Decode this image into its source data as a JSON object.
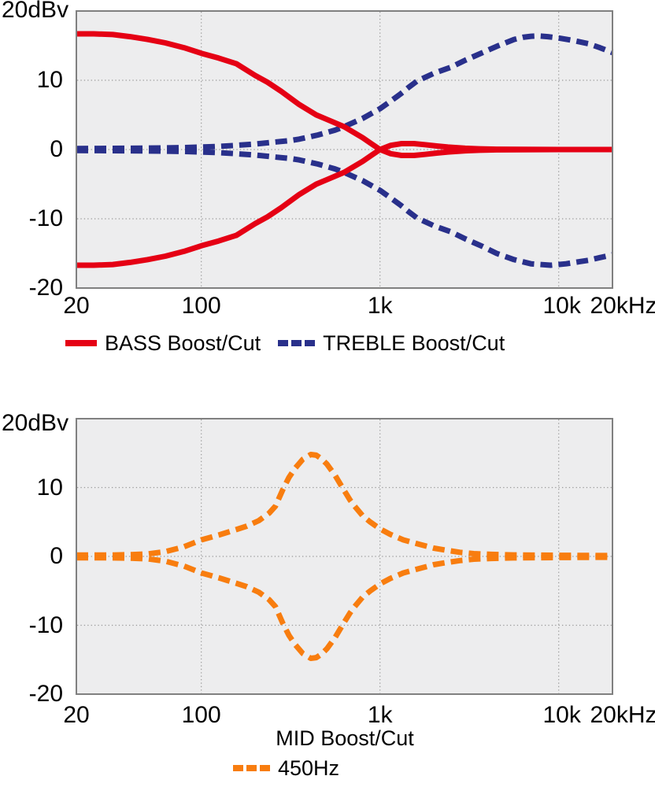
{
  "figure": {
    "background": "#ffffff",
    "text_color": "#000000"
  },
  "chart_data": [
    {
      "type": "line",
      "x_scale": "log",
      "x_range_hz": [
        20,
        20000
      ],
      "ylim": [
        -20,
        20
      ],
      "y_unit_label": "20dBv",
      "grid": "dotted",
      "plot_bg": "#ededee",
      "border_color": "#808080",
      "grid_color": "#999999",
      "y_ticks": [
        {
          "value": 10,
          "label": "10"
        },
        {
          "value": 0,
          "label": "0"
        },
        {
          "value": -10,
          "label": "-10"
        },
        {
          "value": -20,
          "label": "-20"
        }
      ],
      "x_ticks": [
        {
          "hz": 20,
          "label": "20"
        },
        {
          "hz": 100,
          "label": "100"
        },
        {
          "hz": 1000,
          "label": "1k"
        },
        {
          "hz": 10000,
          "label": "10k"
        },
        {
          "hz": 20000,
          "label": "20kHz"
        }
      ],
      "y_gridlines": [
        10,
        0,
        -10
      ],
      "x_gridlines_hz": [
        100,
        1000,
        10000
      ],
      "legend_position": "bottom",
      "legend": [
        {
          "label": "BASS Boost/Cut",
          "color": "#e50014",
          "line_style": "solid"
        },
        {
          "label": "TREBLE Boost/Cut",
          "color": "#29308b",
          "line_style": "dashed"
        }
      ],
      "series": [
        {
          "name": "TREBLE Boost",
          "color": "#29308b",
          "line_style": "dashed",
          "points": [
            [
              20,
              0.15
            ],
            [
              32,
              0.17
            ],
            [
              50,
              0.2
            ],
            [
              80,
              0.28
            ],
            [
              100,
              0.35
            ],
            [
              125,
              0.45
            ],
            [
              157,
              0.6
            ],
            [
              200,
              0.8
            ],
            [
              250,
              1.05
            ],
            [
              315,
              1.3
            ],
            [
              353,
              1.5
            ],
            [
              450,
              2.1
            ],
            [
              560,
              2.8
            ],
            [
              630,
              3.3
            ],
            [
              800,
              4.5
            ],
            [
              1000,
              5.9
            ],
            [
              1150,
              7.0
            ],
            [
              1300,
              8.0
            ],
            [
              1450,
              9.0
            ],
            [
              1615,
              9.9
            ],
            [
              2000,
              11.0
            ],
            [
              2500,
              11.9
            ],
            [
              3000,
              12.9
            ],
            [
              3750,
              14.0
            ],
            [
              4500,
              14.9
            ],
            [
              5630,
              15.9
            ],
            [
              6300,
              16.2
            ],
            [
              7000,
              16.35
            ],
            [
              7700,
              16.4
            ],
            [
              8700,
              16.3
            ],
            [
              10000,
              16.1
            ],
            [
              12000,
              15.75
            ],
            [
              14600,
              15.3
            ],
            [
              17000,
              14.7
            ],
            [
              20000,
              14.0
            ]
          ]
        },
        {
          "name": "TREBLE Cut",
          "color": "#29308b",
          "line_style": "dashed",
          "points": [
            [
              20,
              -0.15
            ],
            [
              32,
              -0.17
            ],
            [
              50,
              -0.2
            ],
            [
              80,
              -0.28
            ],
            [
              100,
              -0.35
            ],
            [
              125,
              -0.45
            ],
            [
              157,
              -0.6
            ],
            [
              200,
              -0.8
            ],
            [
              250,
              -1.05
            ],
            [
              315,
              -1.3
            ],
            [
              353,
              -1.5
            ],
            [
              450,
              -2.1
            ],
            [
              560,
              -2.8
            ],
            [
              630,
              -3.3
            ],
            [
              800,
              -4.5
            ],
            [
              1000,
              -5.9
            ],
            [
              1150,
              -7.0
            ],
            [
              1300,
              -8.0
            ],
            [
              1450,
              -9.0
            ],
            [
              1615,
              -9.9
            ],
            [
              2000,
              -11.0
            ],
            [
              2500,
              -11.9
            ],
            [
              3000,
              -12.9
            ],
            [
              3750,
              -14.0
            ],
            [
              4500,
              -15.0
            ],
            [
              5630,
              -15.9
            ],
            [
              7000,
              -16.5
            ],
            [
              9000,
              -16.7
            ],
            [
              11000,
              -16.5
            ],
            [
              13000,
              -16.2
            ],
            [
              14600,
              -16.0
            ],
            [
              17000,
              -15.6
            ],
            [
              20000,
              -15.2
            ]
          ]
        },
        {
          "name": "BASS Boost",
          "color": "#e50014",
          "line_style": "solid",
          "points": [
            [
              20,
              16.7
            ],
            [
              25,
              16.7
            ],
            [
              32,
              16.6
            ],
            [
              40,
              16.3
            ],
            [
              50,
              15.9
            ],
            [
              63,
              15.4
            ],
            [
              80,
              14.7
            ],
            [
              100,
              13.9
            ],
            [
              125,
              13.2
            ],
            [
              157,
              12.4
            ],
            [
              200,
              10.7
            ],
            [
              235,
              9.7
            ],
            [
              280,
              8.4
            ],
            [
              353,
              6.5
            ],
            [
              440,
              5.0
            ],
            [
              500,
              4.4
            ],
            [
              630,
              3.3
            ],
            [
              800,
              1.7
            ],
            [
              900,
              0.8
            ],
            [
              1000,
              0.0
            ],
            [
              1150,
              -0.6
            ],
            [
              1320,
              -0.85
            ],
            [
              1550,
              -0.85
            ],
            [
              1780,
              -0.7
            ],
            [
              2100,
              -0.5
            ],
            [
              2400,
              -0.35
            ],
            [
              3000,
              -0.18
            ],
            [
              3600,
              -0.1
            ],
            [
              4500,
              -0.05
            ],
            [
              6000,
              -0.02
            ],
            [
              10000,
              0.0
            ],
            [
              20000,
              0.0
            ]
          ]
        },
        {
          "name": "BASS Cut",
          "color": "#e50014",
          "line_style": "solid",
          "points": [
            [
              20,
              -16.7
            ],
            [
              25,
              -16.7
            ],
            [
              32,
              -16.6
            ],
            [
              40,
              -16.3
            ],
            [
              50,
              -15.9
            ],
            [
              63,
              -15.4
            ],
            [
              80,
              -14.7
            ],
            [
              100,
              -13.9
            ],
            [
              125,
              -13.2
            ],
            [
              157,
              -12.4
            ],
            [
              200,
              -10.7
            ],
            [
              235,
              -9.7
            ],
            [
              280,
              -8.4
            ],
            [
              353,
              -6.5
            ],
            [
              440,
              -5.0
            ],
            [
              500,
              -4.4
            ],
            [
              630,
              -3.3
            ],
            [
              800,
              -1.7
            ],
            [
              900,
              -0.8
            ],
            [
              1000,
              0.0
            ],
            [
              1150,
              0.6
            ],
            [
              1320,
              0.85
            ],
            [
              1550,
              0.85
            ],
            [
              1780,
              0.7
            ],
            [
              2100,
              0.5
            ],
            [
              2400,
              0.35
            ],
            [
              3000,
              0.18
            ],
            [
              3600,
              0.1
            ],
            [
              4500,
              0.05
            ],
            [
              6000,
              0.02
            ],
            [
              10000,
              0.0
            ],
            [
              20000,
              0.0
            ]
          ]
        }
      ]
    },
    {
      "type": "line",
      "x_scale": "log",
      "x_range_hz": [
        20,
        20000
      ],
      "ylim": [
        -20,
        20
      ],
      "y_unit_label": "20dBv",
      "xlabel": "MID Boost/Cut",
      "grid": "dotted",
      "plot_bg": "#ededee",
      "border_color": "#808080",
      "grid_color": "#999999",
      "y_ticks": [
        {
          "value": 10,
          "label": "10"
        },
        {
          "value": 0,
          "label": "0"
        },
        {
          "value": -10,
          "label": "-10"
        },
        {
          "value": -20,
          "label": "-20"
        }
      ],
      "x_ticks": [
        {
          "hz": 20,
          "label": "20"
        },
        {
          "hz": 100,
          "label": "100"
        },
        {
          "hz": 1000,
          "label": "1k"
        },
        {
          "hz": 10000,
          "label": "10k"
        },
        {
          "hz": 20000,
          "label": "20kHz"
        }
      ],
      "y_gridlines": [
        10,
        0,
        -10
      ],
      "x_gridlines_hz": [
        100,
        1000,
        10000
      ],
      "legend_position": "bottom",
      "legend": [
        {
          "label": "450Hz",
          "color": "#f87d0f",
          "line_style": "dashed"
        }
      ],
      "series": [
        {
          "name": "MID Boost",
          "color": "#f87d0f",
          "line_style": "dashed",
          "points": [
            [
              20,
              0.2
            ],
            [
              30,
              0.2
            ],
            [
              40,
              0.25
            ],
            [
              50,
              0.35
            ],
            [
              63,
              0.7
            ],
            [
              80,
              1.4
            ],
            [
              100,
              2.4
            ],
            [
              125,
              3.1
            ],
            [
              157,
              3.9
            ],
            [
              180,
              4.4
            ],
            [
              210,
              5.2
            ],
            [
              240,
              6.3
            ],
            [
              260,
              7.3
            ],
            [
              287,
              9.8
            ],
            [
              310,
              11.5
            ],
            [
              335,
              12.8
            ],
            [
              370,
              14.1
            ],
            [
              410,
              14.8
            ],
            [
              440,
              14.7
            ],
            [
              470,
              14.2
            ],
            [
              505,
              13.4
            ],
            [
              560,
              11.8
            ],
            [
              616,
              10.0
            ],
            [
              680,
              8.2
            ],
            [
              721,
              7.3
            ],
            [
              800,
              5.9
            ],
            [
              882,
              5.0
            ],
            [
              1000,
              4.0
            ],
            [
              1143,
              3.2
            ],
            [
              1350,
              2.4
            ],
            [
              1637,
              1.8
            ],
            [
              2000,
              1.2
            ],
            [
              2343,
              0.9
            ],
            [
              2800,
              0.6
            ],
            [
              3354,
              0.4
            ],
            [
              4200,
              0.3
            ],
            [
              5570,
              0.22
            ],
            [
              8000,
              0.18
            ],
            [
              12000,
              0.15
            ],
            [
              20000,
              0.12
            ]
          ]
        },
        {
          "name": "MID Cut",
          "color": "#f87d0f",
          "line_style": "dashed",
          "points": [
            [
              20,
              -0.2
            ],
            [
              30,
              -0.2
            ],
            [
              40,
              -0.25
            ],
            [
              50,
              -0.35
            ],
            [
              63,
              -0.7
            ],
            [
              80,
              -1.4
            ],
            [
              100,
              -2.4
            ],
            [
              125,
              -3.1
            ],
            [
              157,
              -3.9
            ],
            [
              180,
              -4.4
            ],
            [
              210,
              -5.2
            ],
            [
              240,
              -6.3
            ],
            [
              260,
              -7.3
            ],
            [
              287,
              -9.8
            ],
            [
              310,
              -11.5
            ],
            [
              335,
              -12.8
            ],
            [
              370,
              -14.1
            ],
            [
              410,
              -14.8
            ],
            [
              440,
              -14.7
            ],
            [
              470,
              -14.2
            ],
            [
              505,
              -13.4
            ],
            [
              560,
              -11.8
            ],
            [
              616,
              -10.0
            ],
            [
              680,
              -8.2
            ],
            [
              721,
              -7.3
            ],
            [
              800,
              -5.9
            ],
            [
              882,
              -5.0
            ],
            [
              1000,
              -4.0
            ],
            [
              1143,
              -3.2
            ],
            [
              1350,
              -2.4
            ],
            [
              1637,
              -1.8
            ],
            [
              2000,
              -1.2
            ],
            [
              2343,
              -0.9
            ],
            [
              2800,
              -0.6
            ],
            [
              3354,
              -0.4
            ],
            [
              4200,
              -0.3
            ],
            [
              5570,
              -0.22
            ],
            [
              8000,
              -0.18
            ],
            [
              12000,
              -0.15
            ],
            [
              20000,
              -0.12
            ]
          ]
        }
      ]
    }
  ]
}
